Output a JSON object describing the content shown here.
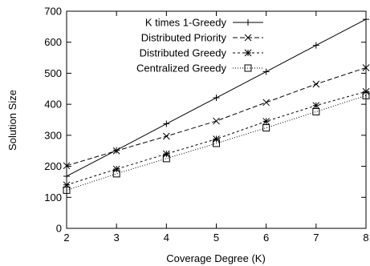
{
  "chart_data": {
    "type": "line",
    "xlabel": "Coverage Degree (K)",
    "ylabel": "Solution Size",
    "xlim": [
      2,
      8
    ],
    "ylim": [
      0,
      700
    ],
    "x_ticks": [
      "2",
      "3",
      "4",
      "5",
      "6",
      "7",
      "8"
    ],
    "y_ticks": [
      "0",
      "100",
      "200",
      "300",
      "400",
      "500",
      "600",
      "700"
    ],
    "grid": false,
    "legend_position": "top-left",
    "x": [
      2,
      3,
      4,
      5,
      6,
      7,
      8
    ],
    "series": [
      {
        "name": "K times 1-Greedy",
        "marker": "plus",
        "dash": "solid",
        "values": [
          168,
          252,
          337,
          421,
          505,
          590,
          674
        ]
      },
      {
        "name": "Distributed Priority",
        "marker": "cross",
        "dash": "dashed",
        "values": [
          202,
          250,
          297,
          346,
          406,
          465,
          518
        ]
      },
      {
        "name": "Distributed Greedy",
        "marker": "asterisk",
        "dash": "short-dashed",
        "values": [
          140,
          191,
          240,
          288,
          345,
          396,
          441
        ]
      },
      {
        "name": "Centralized Greedy",
        "marker": "square",
        "dash": "dotted",
        "values": [
          123,
          176,
          225,
          274,
          324,
          376,
          428
        ]
      }
    ]
  }
}
